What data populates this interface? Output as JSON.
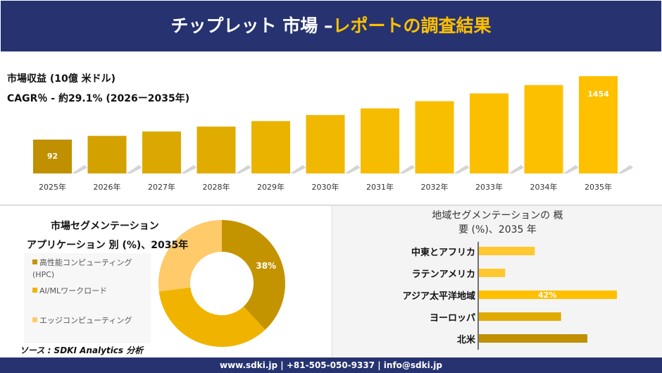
{
  "header": {
    "title_main": "チップレット 市場 –",
    "title_accent": "レポートの調査結果"
  },
  "revenue": {
    "unit_label": "市場収益 (10億 米ドル)",
    "cagr_label": "CAGR％ - 約29.1% (2026ー2035年)"
  },
  "chart_data": [
    {
      "type": "bar",
      "categories": [
        "2025年",
        "2026年",
        "2027年",
        "2028年",
        "2029年",
        "2030年",
        "2031年",
        "2032年",
        "2033年",
        "2034年",
        "2035年"
      ],
      "values": [
        92,
        null,
        null,
        null,
        null,
        null,
        null,
        null,
        null,
        null,
        1454
      ],
      "data_labels": [
        "92",
        "",
        "",
        "",
        "",
        "",
        "",
        "",
        "",
        "",
        "1454"
      ],
      "colors": [
        "#C09000",
        "#D4A200",
        "#DAA800",
        "#E0AC00",
        "#EAB300",
        "#F0B800",
        "#F5BC00",
        "#F8BE00",
        "#FBBF00",
        "#FDC000",
        "#FFC000"
      ]
    },
    {
      "type": "pie",
      "title": "市場セグメンテーション",
      "subtitle": "アプリケーション 別 (%)、2035年",
      "categories": [
        "高性能コンピューティング (HPC)",
        "AI/MLワークロード",
        "エッジコンピューティング"
      ],
      "values": [
        38,
        35,
        27
      ],
      "data_labels": [
        "38%",
        "",
        ""
      ],
      "colors": [
        "#C49400",
        "#F0B400",
        "#FFCA6A"
      ],
      "legend": "left"
    },
    {
      "type": "bar",
      "orientation": "horizontal",
      "title": "地域セグメンテーションの 概要 (%)、2035 年",
      "categories": [
        "中東とアフリカ",
        "ラテンアメリカ",
        "アジア太平洋地域",
        "ヨーロッパ",
        "北米"
      ],
      "values": [
        17,
        8,
        42,
        25,
        33
      ],
      "data_labels": [
        "",
        "",
        "42%",
        "",
        ""
      ],
      "colors": [
        "#FFC830",
        "#FFC830",
        "#FFC000",
        "#E0AA00",
        "#C09000"
      ]
    }
  ],
  "source": "ソース : SDKI Analytics 分析",
  "footer": "www.sdki.jp | +81-505-050-9337 | info@sdki.jp"
}
